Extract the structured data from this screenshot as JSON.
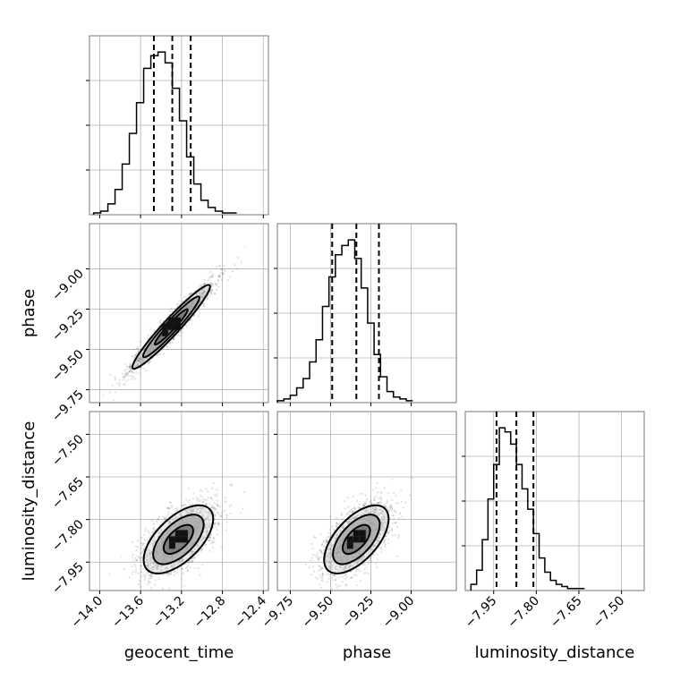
{
  "chart_data": {
    "type": "corner",
    "parameters": [
      "geocent_time",
      "phase",
      "luminosity_distance"
    ],
    "grid": true,
    "axes": {
      "geocent_time": {
        "range": [
          -14.1,
          -12.35
        ],
        "ticks": [
          -14.0,
          -13.6,
          -13.2,
          -12.8,
          -12.4
        ],
        "tick_labels": [
          "−14.0",
          "−13.6",
          "−13.2",
          "−12.8",
          "−12.4"
        ]
      },
      "phase": {
        "range": [
          -9.83,
          -8.72
        ],
        "ticks": [
          -9.75,
          -9.5,
          -9.25,
          -9.0
        ],
        "tick_labels": [
          "−9.75",
          "−9.50",
          "−9.25",
          "−9.00"
        ]
      },
      "luminosity_distance": {
        "range": [
          -8.05,
          -7.42
        ],
        "ticks": [
          -7.95,
          -7.8,
          -7.65,
          -7.5
        ],
        "tick_labels": [
          "−7.95",
          "−7.80",
          "−7.65",
          "−7.50"
        ]
      }
    },
    "marginals": [
      {
        "parameter": "geocent_time",
        "quantiles": [
          -13.47,
          -13.29,
          -13.11
        ],
        "bin_edges": [
          -14.06,
          -13.99,
          -13.92,
          -13.85,
          -13.78,
          -13.71,
          -13.64,
          -13.57,
          -13.5,
          -13.43,
          -13.36,
          -13.29,
          -13.22,
          -13.15,
          -13.08,
          -13.01,
          -12.94,
          -12.87,
          -12.8,
          -12.73,
          -12.66
        ],
        "counts": [
          1,
          2,
          6,
          14,
          28,
          45,
          62,
          81,
          88,
          90,
          84,
          70,
          52,
          32,
          17,
          8,
          4,
          2,
          1,
          1
        ]
      },
      {
        "parameter": "phase",
        "quantiles": [
          -9.49,
          -9.34,
          -9.2
        ],
        "bin_edges": [
          -9.83,
          -9.79,
          -9.75,
          -9.71,
          -9.67,
          -9.63,
          -9.59,
          -9.55,
          -9.51,
          -9.47,
          -9.43,
          -9.39,
          -9.35,
          -9.31,
          -9.27,
          -9.23,
          -9.19,
          -9.15,
          -9.11,
          -9.07,
          -9.03,
          -8.99
        ],
        "counts": [
          1,
          2,
          4,
          8,
          13,
          22,
          34,
          52,
          68,
          80,
          85,
          88,
          78,
          62,
          43,
          26,
          14,
          6,
          3,
          2,
          1
        ]
      },
      {
        "parameter": "luminosity_distance",
        "quantiles": [
          -7.94,
          -7.87,
          -7.81
        ],
        "bin_edges": [
          -8.03,
          -8.01,
          -7.99,
          -7.97,
          -7.95,
          -7.93,
          -7.91,
          -7.89,
          -7.87,
          -7.85,
          -7.83,
          -7.81,
          -7.79,
          -7.77,
          -7.75,
          -7.73,
          -7.71,
          -7.69,
          -7.67,
          -7.65,
          -7.63
        ],
        "counts": [
          3,
          10,
          25,
          45,
          62,
          80,
          78,
          72,
          62,
          50,
          40,
          28,
          16,
          9,
          5,
          3,
          2,
          1,
          1,
          1
        ]
      }
    ],
    "joints": [
      {
        "x": "geocent_time",
        "y": "phase",
        "center": [
          -13.3,
          -9.36
        ],
        "std": [
          0.19,
          0.13
        ],
        "correlation": 0.96,
        "levels": 3
      },
      {
        "x": "geocent_time",
        "y": "luminosity_distance",
        "center": [
          -13.23,
          -7.87
        ],
        "std": [
          0.17,
          0.06
        ],
        "correlation": 0.6,
        "levels": 3
      },
      {
        "x": "phase",
        "y": "luminosity_distance",
        "center": [
          -9.34,
          -7.87
        ],
        "std": [
          0.1,
          0.06
        ],
        "correlation": 0.6,
        "levels": 3
      }
    ]
  }
}
